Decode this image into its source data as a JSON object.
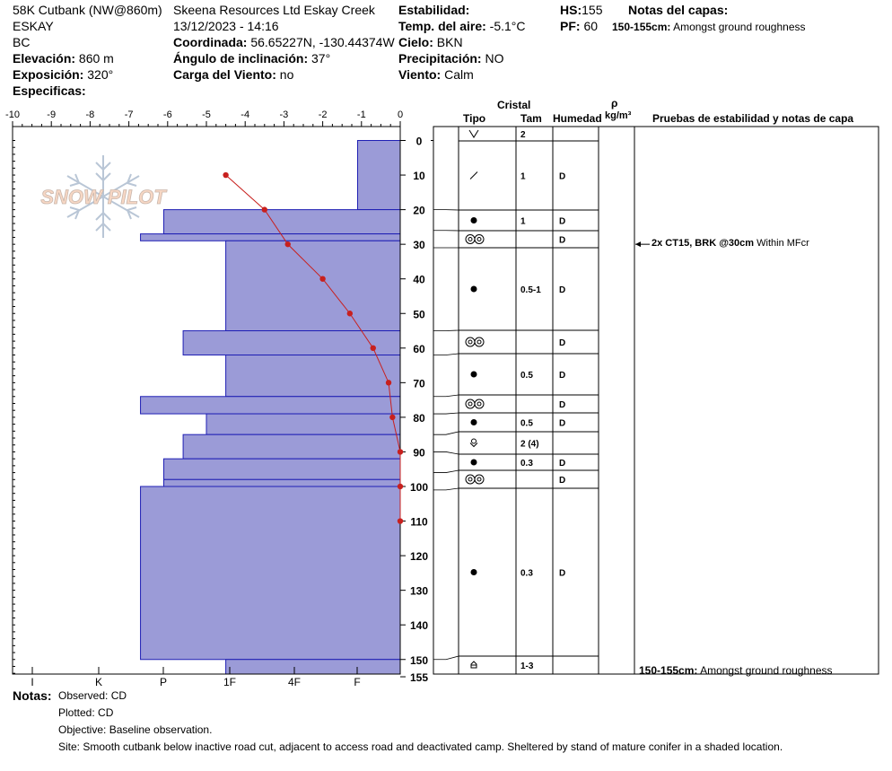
{
  "header": {
    "title": "58K Cutbank (NW@860m)",
    "operation": "Skeena Resources Ltd Eskay Creek",
    "datetime": "13/12/2023 - 14:16",
    "location_name": "ESKAY",
    "region": "BC",
    "elevation_label": "Elevación:",
    "elevation_value": "860 m",
    "aspect_label": "Exposición:",
    "aspect_value": "320°",
    "specifics_label": "Especificas:",
    "coord_label": "Coordinada:",
    "coord_value": "56.65227N, -130.44374W",
    "slope_label": "Ángulo de inclinación:",
    "slope_value": "37°",
    "wind_load_label": "Carga del Viento:",
    "wind_load_value": "no",
    "stability_label": "Estabilidad:",
    "air_temp_label": "Temp. del aire:",
    "air_temp_value": "-5.1°C",
    "sky_label": "Cielo:",
    "sky_value": "BKN",
    "precip_label": "Precipitación:",
    "precip_value": "NO",
    "wind_label": "Viento:",
    "wind_value": "Calm",
    "hs_label": "HS:",
    "hs_value": "155",
    "pf_label": "PF:",
    "pf_value": "60",
    "layer_notes_label": "Notas del capas:",
    "layer_note_range": "150-155cm:",
    "layer_note_text": "Amongst ground roughness"
  },
  "logo": {
    "text": "SNOW PILOT"
  },
  "table_headers": {
    "crystal": "Cristal",
    "type": "Tipo",
    "size": "Tam",
    "moisture": "Humedad",
    "rho": "ρ",
    "density_unit": "kg/m³",
    "tests": "Pruebas de estabilidad y notas de capa"
  },
  "notes": {
    "label": "Notas:",
    "observed": "Observed: CD",
    "plotted": "Plotted: CD",
    "objective": "Objective: Baseline observation.",
    "site": "Site: Smooth cutbank below inactive road cut, adjacent to access road and deactivated camp. Sheltered by stand of mature conifer in a shaded location."
  },
  "bottom_note": {
    "range": "150-155cm:",
    "text": "Amongst ground roughness"
  },
  "test_result": {
    "label": "2x CT15, BRK @30cm",
    "note": "Within MFcr"
  },
  "colors": {
    "hardness_fill": "#9b9bd7",
    "hardness_edge": "#1f1fb4",
    "temp_line": "#c8201e",
    "grid": "#000000"
  },
  "chart_data": {
    "type": "snow_profile",
    "temp_axis": {
      "ticks": [
        "-10",
        "-9",
        "-8",
        "-7",
        "-6",
        "-5",
        "-4",
        "-3",
        "-2",
        "-1",
        "0"
      ],
      "range": [
        -10,
        0
      ]
    },
    "hardness_axis": {
      "ticks": [
        "I",
        "K",
        "P",
        "1F",
        "4F",
        "F"
      ]
    },
    "depth_axis": {
      "ticks": [
        "0",
        "10",
        "20",
        "30",
        "40",
        "50",
        "60",
        "70",
        "80",
        "90",
        "100",
        "110",
        "120",
        "130",
        "140",
        "150",
        "155"
      ],
      "range": [
        0,
        155
      ],
      "unit": "cm from surface"
    },
    "hardness_layers": [
      {
        "top": 0,
        "bottom": 20,
        "ext": -1.1
      },
      {
        "top": 20,
        "bottom": 27,
        "ext": -6.1
      },
      {
        "top": 27,
        "bottom": 29,
        "ext": -6.7
      },
      {
        "top": 29,
        "bottom": 55,
        "ext": -4.5
      },
      {
        "top": 55,
        "bottom": 62,
        "ext": -5.6
      },
      {
        "top": 62,
        "bottom": 74,
        "ext": -4.5
      },
      {
        "top": 74,
        "bottom": 79,
        "ext": -6.7
      },
      {
        "top": 79,
        "bottom": 85,
        "ext": -5.0
      },
      {
        "top": 85,
        "bottom": 92,
        "ext": -5.6
      },
      {
        "top": 92,
        "bottom": 98,
        "ext": -6.1
      },
      {
        "top": 98,
        "bottom": 100,
        "ext": -6.1
      },
      {
        "top": 100,
        "bottom": 150,
        "ext": -6.7
      },
      {
        "top": 150,
        "bottom": 155,
        "ext": -4.5
      }
    ],
    "temperature": {
      "depth": [
        10,
        20,
        30,
        40,
        50,
        60,
        70,
        80,
        90,
        100,
        110
      ],
      "temp": [
        -4.5,
        -3.5,
        -2.9,
        -2.0,
        -1.3,
        -0.7,
        -0.3,
        -0.2,
        0.0,
        0.0,
        0.0
      ]
    },
    "crystal_layers": [
      {
        "top": 0,
        "bottom": 4,
        "type": "precip",
        "size": "2",
        "moisture": ""
      },
      {
        "top": 4,
        "bottom": 20,
        "type": "decomposed",
        "size": "1",
        "moisture": "D"
      },
      {
        "top": 20,
        "bottom": 26,
        "type": "rounded",
        "size": "1",
        "moisture": "D"
      },
      {
        "top": 26,
        "bottom": 31,
        "type": "meltfreeze",
        "size": "",
        "moisture": "D"
      },
      {
        "top": 31,
        "bottom": 55,
        "type": "rounded",
        "size": "0.5-1",
        "moisture": "D"
      },
      {
        "top": 55,
        "bottom": 62,
        "type": "meltfreeze",
        "size": "",
        "moisture": "D"
      },
      {
        "top": 62,
        "bottom": 74,
        "type": "rounded",
        "size": "0.5",
        "moisture": "D"
      },
      {
        "top": 74,
        "bottom": 79,
        "type": "meltfreeze",
        "size": "",
        "moisture": "D"
      },
      {
        "top": 79,
        "bottom": 85,
        "type": "rounded",
        "size": "0.5",
        "moisture": "D"
      },
      {
        "top": 85,
        "bottom": 90,
        "type": "mixed",
        "size": "2 (4)",
        "moisture": ""
      },
      {
        "top": 90,
        "bottom": 96,
        "type": "rounded",
        "size": "0.3",
        "moisture": "D"
      },
      {
        "top": 96,
        "bottom": 101,
        "type": "meltfreeze",
        "size": "",
        "moisture": "D"
      },
      {
        "top": 101,
        "bottom": 150,
        "type": "rounded",
        "size": "0.3",
        "moisture": "D"
      },
      {
        "top": 150,
        "bottom": 155,
        "type": "depthhoar",
        "size": "1-3",
        "moisture": ""
      }
    ]
  }
}
